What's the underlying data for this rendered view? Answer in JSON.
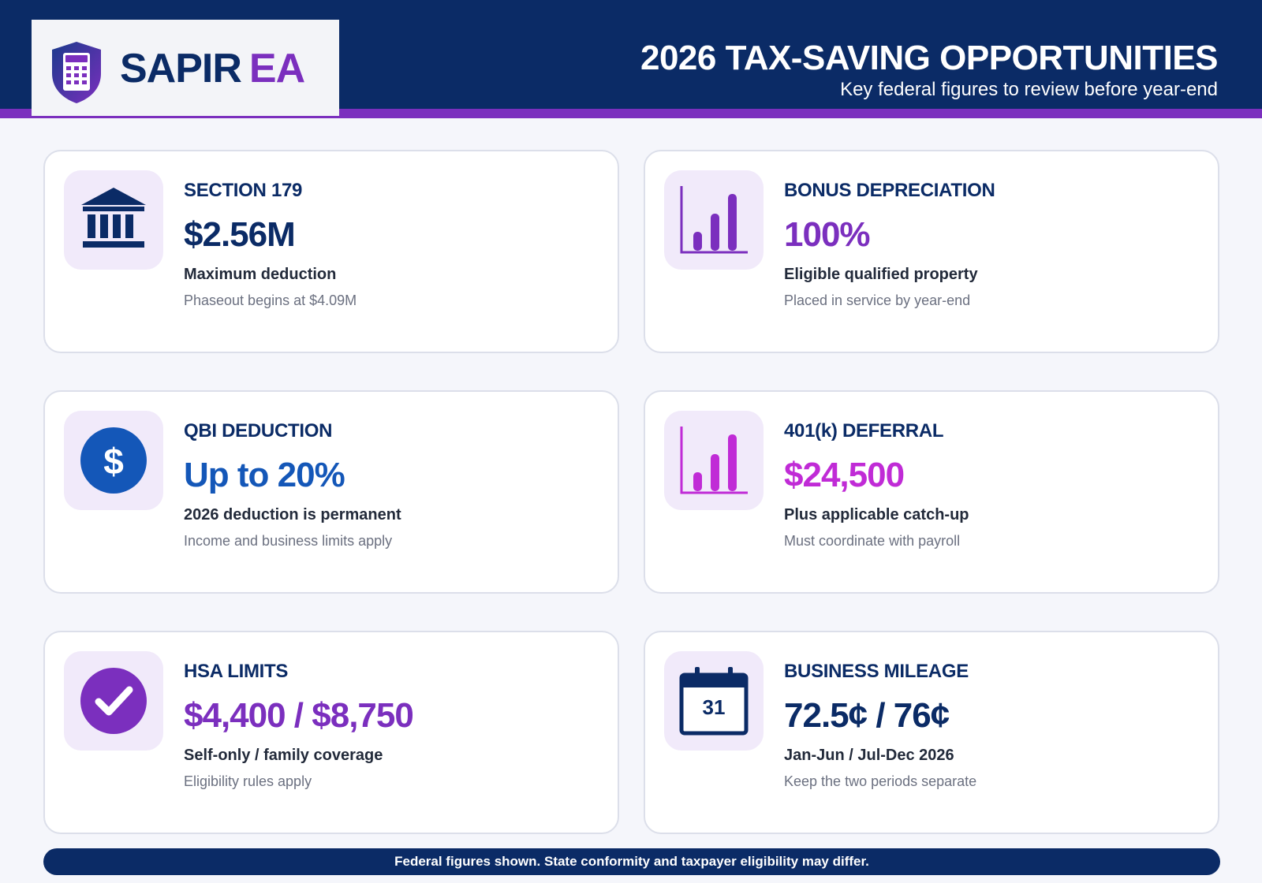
{
  "brand": {
    "name_part1": "SAPIR",
    "name_part2": "EA",
    "colors": {
      "navy": "#0b2b66",
      "purple": "#7b2fbe",
      "magenta": "#c02bd6",
      "blue": "#1457b8"
    }
  },
  "header": {
    "title": "2026 TAX-SAVING OPPORTUNITIES",
    "subtitle": "Key federal figures to review before year-end"
  },
  "cards": [
    {
      "label": "SECTION 179",
      "value": "$2.56M",
      "value_color": "#0b2b66",
      "description": "Maximum deduction",
      "note": "Phaseout begins at $4.09M",
      "icon": "bank-icon"
    },
    {
      "label": "BONUS DEPRECIATION",
      "value": "100%",
      "value_color": "#7b2fbe",
      "description": "Eligible qualified property",
      "note": "Placed in service by year-end",
      "icon": "bar-chart-icon"
    },
    {
      "label": "QBI DEDUCTION",
      "value": "Up to 20%",
      "value_color": "#1457b8",
      "description": "2026 deduction is permanent",
      "note": "Income and business limits apply",
      "icon": "dollar-icon"
    },
    {
      "label": "401(k) DEFERRAL",
      "value": "$24,500",
      "value_color": "#c02bd6",
      "description": "Plus applicable catch-up",
      "note": "Must coordinate with payroll",
      "icon": "bar-chart-icon"
    },
    {
      "label": "HSA LIMITS",
      "value": "$4,400 / $8,750",
      "value_color": "#7b2fbe",
      "description": "Self-only / family coverage",
      "note": "Eligibility rules apply",
      "icon": "check-icon"
    },
    {
      "label": "BUSINESS MILEAGE",
      "value": "72.5¢ / 76¢",
      "value_color": "#0b2b66",
      "description": "Jan-Jun / Jul-Dec 2026",
      "note": "Keep the two periods separate",
      "icon": "calendar-icon",
      "calendar_day": "31"
    }
  ],
  "footer": {
    "text": "Federal figures shown. State conformity and taxpayer eligibility may differ."
  }
}
